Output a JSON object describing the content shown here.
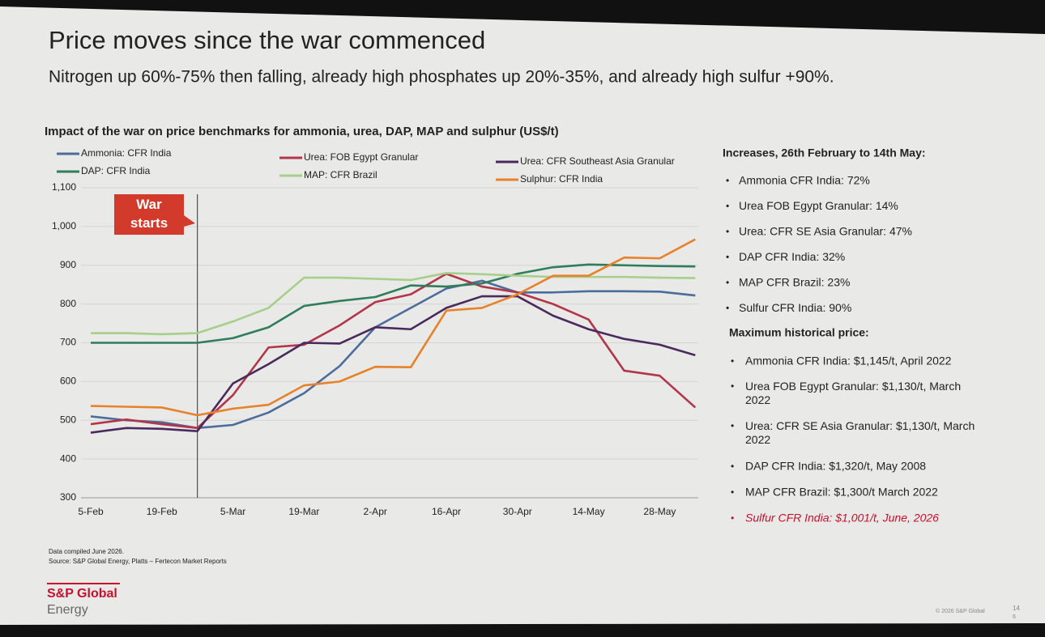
{
  "header": {
    "title": "Price moves since the war commenced",
    "subtitle": "Nitrogen up 60%-75% then falling, already high phosphates up 20%-35%, and already high sulfur +90%."
  },
  "chart_data": {
    "type": "line",
    "title": "Impact of the war on price benchmarks for ammonia, urea, DAP, MAP and sulphur (US$/t)",
    "annotation": "War starts",
    "categories": [
      "5-Feb",
      null,
      "19-Feb",
      null,
      "5-Mar",
      null,
      "19-Mar",
      null,
      "2-Apr",
      null,
      "16-Apr",
      null,
      "30-Apr",
      null,
      "14-May",
      null,
      "28-May",
      null
    ],
    "ylim": [
      300,
      1100
    ],
    "yticks": [
      300,
      400,
      500,
      600,
      700,
      800,
      900,
      {
        "value": 1000,
        "label": "1,000"
      },
      {
        "value": 1100,
        "label": "1,100"
      }
    ],
    "grid": true,
    "series": [
      {
        "name": "Ammonia: CFR India",
        "color": "#4b6c9c",
        "values": [
          510,
          500,
          495,
          480,
          488,
          520,
          570,
          640,
          740,
          790,
          840,
          860,
          830,
          830,
          833,
          833,
          832,
          822
        ]
      },
      {
        "name": "Urea: FOB Egypt Granular",
        "color": "#b2354a",
        "values": [
          490,
          502,
          490,
          480,
          565,
          688,
          695,
          745,
          805,
          825,
          878,
          845,
          830,
          800,
          760,
          628,
          615,
          533
        ]
      },
      {
        "name": "Urea: CFR Southeast Asia Granular",
        "color": "#4a2a5c",
        "values": [
          468,
          480,
          478,
          472,
          595,
          645,
          700,
          698,
          740,
          735,
          790,
          820,
          820,
          770,
          735,
          710,
          695,
          668
        ]
      },
      {
        "name": "DAP: CFR India",
        "color": "#2e7d5b",
        "values": [
          700,
          700,
          700,
          700,
          712,
          740,
          795,
          808,
          818,
          848,
          845,
          853,
          878,
          895,
          902,
          900,
          898,
          897
        ]
      },
      {
        "name": "MAP: CFR Brazil",
        "color": "#a6cf8c",
        "values": [
          725,
          725,
          722,
          725,
          755,
          790,
          868,
          868,
          865,
          862,
          880,
          877,
          873,
          870,
          870,
          870,
          868,
          867
        ]
      },
      {
        "name": "Sulphur: CFR India",
        "color": "#e8822a",
        "values": [
          537,
          535,
          533,
          513,
          530,
          540,
          590,
          600,
          638,
          637,
          783,
          790,
          825,
          873,
          873,
          920,
          918,
          967
        ]
      }
    ]
  },
  "panel": {
    "increases_heading": "Increases, 26th February to 14th May:",
    "increases": [
      "Ammonia CFR India: 72%",
      "Urea FOB Egypt Granular: 14%",
      "Urea: CFR SE Asia Granular: 47%",
      "DAP CFR India: 32%",
      "MAP CFR Brazil: 23%",
      "Sulfur CFR India: 90%"
    ],
    "max_heading": "Maximum historical price:",
    "max_items": [
      "Ammonia CFR India: $1,145/t, April 2022",
      "Urea FOB Egypt Granular: $1,130/t, March 2022",
      "Urea: CFR SE Asia Granular: $1,130/t, March 2022",
      "DAP CFR India: $1,320/t, May 2008",
      "MAP CFR Brazil: $1,300/t March 2022",
      "Sulfur CFR India: $1,001/t, June, 2026"
    ]
  },
  "footer": {
    "note": "Data compiled June 2026.",
    "source": "Source: S&P Global Energy, Platts – Fertecon Market Reports",
    "logo_top": "S&P Global",
    "logo_bottom": "Energy",
    "copyright": "© 2026 S&P Global",
    "page": "14",
    "page_sub": "6"
  }
}
